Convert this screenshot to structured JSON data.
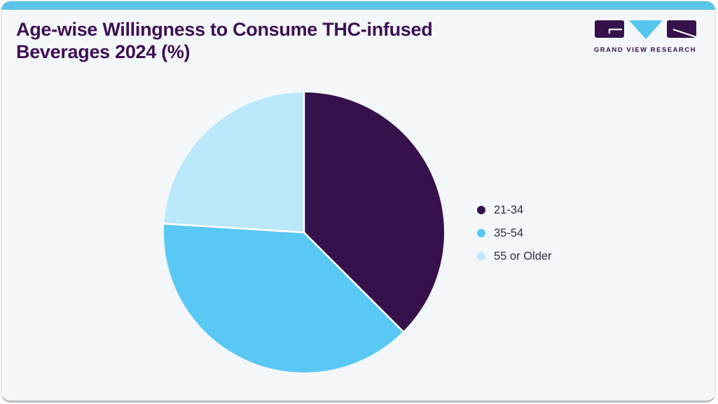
{
  "header": {
    "title_line1": "Age-wise Willingness to Consume THC-infused",
    "title_line2": "Beverages 2024 (%)",
    "brand_name": "GRAND VIEW RESEARCH"
  },
  "colors": {
    "accent_topbar": "#5ac4e8",
    "card_background": "#f3f7fa",
    "card_border": "#d4dae1",
    "card_border_bottom": "#b9bfc7",
    "title_text": "#3e1054",
    "legend_text": "#30303f",
    "brand_purple": "#36114b",
    "logo_triangle_blue": "#56c5ee",
    "slice_divider": "#ffffff"
  },
  "chart_data": {
    "type": "pie",
    "title": "Age-wise Willingness to Consume THC-infused Beverages 2024 (%)",
    "categories": [
      "21-34",
      "35-54",
      "55 or Older"
    ],
    "values": [
      37.5,
      38.5,
      24
    ],
    "unit": "percent",
    "colors": [
      "#36114b",
      "#5ac8f5",
      "#bae7fa"
    ],
    "start_angle_deg": 0,
    "direction": "clockwise",
    "legend_position": "right",
    "data_labels_shown": false
  },
  "legend": {
    "items": [
      {
        "label": "21-34",
        "color": "#36114b"
      },
      {
        "label": "35-54",
        "color": "#5ac8f5"
      },
      {
        "label": "55 or Older",
        "color": "#bae7fa"
      }
    ]
  }
}
